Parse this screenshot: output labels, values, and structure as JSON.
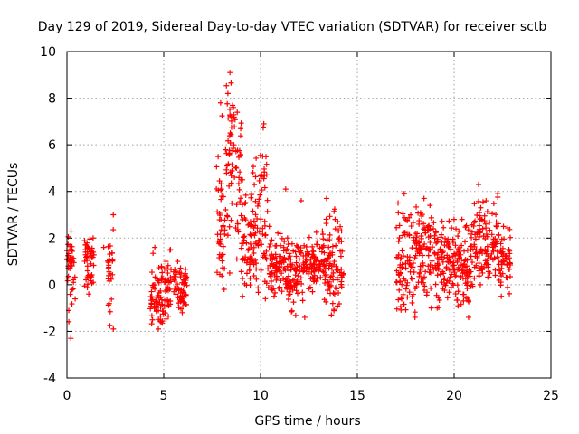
{
  "chart_data": {
    "type": "scatter",
    "title": "Day 129 of 2019, Sidereal Day-to-day VTEC variation (SDTVAR) for receiver sctb",
    "xlabel": "GPS time / hours",
    "ylabel": "SDTVAR / TECUs",
    "xlim": [
      0,
      25
    ],
    "ylim": [
      -4,
      10
    ],
    "xticks": [
      0,
      5,
      10,
      15,
      20,
      25
    ],
    "yticks": [
      -4,
      -2,
      0,
      2,
      4,
      6,
      8,
      10
    ],
    "xtick_labels": [
      "0",
      "5",
      "10",
      "15",
      "20",
      "25"
    ],
    "ytick_labels": [
      "-4",
      "-2",
      "0",
      "2",
      "4",
      "6",
      "8",
      "10"
    ],
    "grid": true,
    "marker": "+",
    "color": "#ff0000",
    "series": [
      {
        "name": "sctb",
        "clusters": [
          {
            "x": [
              0.0,
              0.45
            ],
            "y": [
              -2.3,
              2.3
            ],
            "center": 0.8
          },
          {
            "x": [
              0.9,
              1.4
            ],
            "y": [
              -0.4,
              2.0
            ],
            "center": 1.3
          },
          {
            "x": [
              2.1,
              2.4
            ],
            "y": [
              -1.9,
              3.0
            ],
            "center": 0.5
          },
          {
            "x": [
              4.3,
              5.4
            ],
            "y": [
              -1.9,
              1.6
            ],
            "center": -0.5
          },
          {
            "x": [
              5.5,
              6.2
            ],
            "y": [
              -1.2,
              1.0
            ],
            "center": -0.2
          },
          {
            "x": [
              7.7,
              8.2
            ],
            "y": [
              -0.2,
              7.8
            ],
            "center": 2.2
          },
          {
            "x": [
              8.2,
              9.0
            ],
            "y": [
              0.5,
              9.1
            ],
            "center": 5.5
          },
          {
            "x": [
              9.0,
              9.6
            ],
            "y": [
              -0.5,
              4.5
            ],
            "center": 1.5
          },
          {
            "x": [
              9.6,
              10.4
            ],
            "y": [
              -0.6,
              6.9
            ],
            "center": 2.5
          },
          {
            "x": [
              10.4,
              11.3
            ],
            "y": [
              -0.5,
              2.5
            ],
            "center": 0.8
          },
          {
            "x": [
              11.3,
              12.3
            ],
            "y": [
              -1.4,
              2.0
            ],
            "center": 0.5
          },
          {
            "x": [
              12.3,
              13.3
            ],
            "y": [
              -0.3,
              2.3
            ],
            "center": 1.0
          },
          {
            "x": [
              13.3,
              14.3
            ],
            "y": [
              -1.3,
              3.7
            ],
            "center": 0.8
          },
          {
            "x": [
              17.0,
              18.0
            ],
            "y": [
              -1.4,
              3.9
            ],
            "center": 1.0
          },
          {
            "x": [
              18.0,
              19.0
            ],
            "y": [
              -1.0,
              3.7
            ],
            "center": 1.5
          },
          {
            "x": [
              19.0,
              20.0
            ],
            "y": [
              -1.0,
              2.8
            ],
            "center": 1.0
          },
          {
            "x": [
              20.0,
              21.0
            ],
            "y": [
              -1.4,
              2.8
            ],
            "center": 0.8
          },
          {
            "x": [
              21.0,
              22.3
            ],
            "y": [
              0.0,
              4.3
            ],
            "center": 1.8
          },
          {
            "x": [
              22.3,
              22.9
            ],
            "y": [
              -0.5,
              2.5
            ],
            "center": 1.0
          }
        ],
        "outliers": [
          {
            "x": 11.3,
            "y": 4.1
          },
          {
            "x": 12.1,
            "y": 3.6
          },
          {
            "x": 1.9,
            "y": 1.6
          }
        ]
      }
    ]
  }
}
